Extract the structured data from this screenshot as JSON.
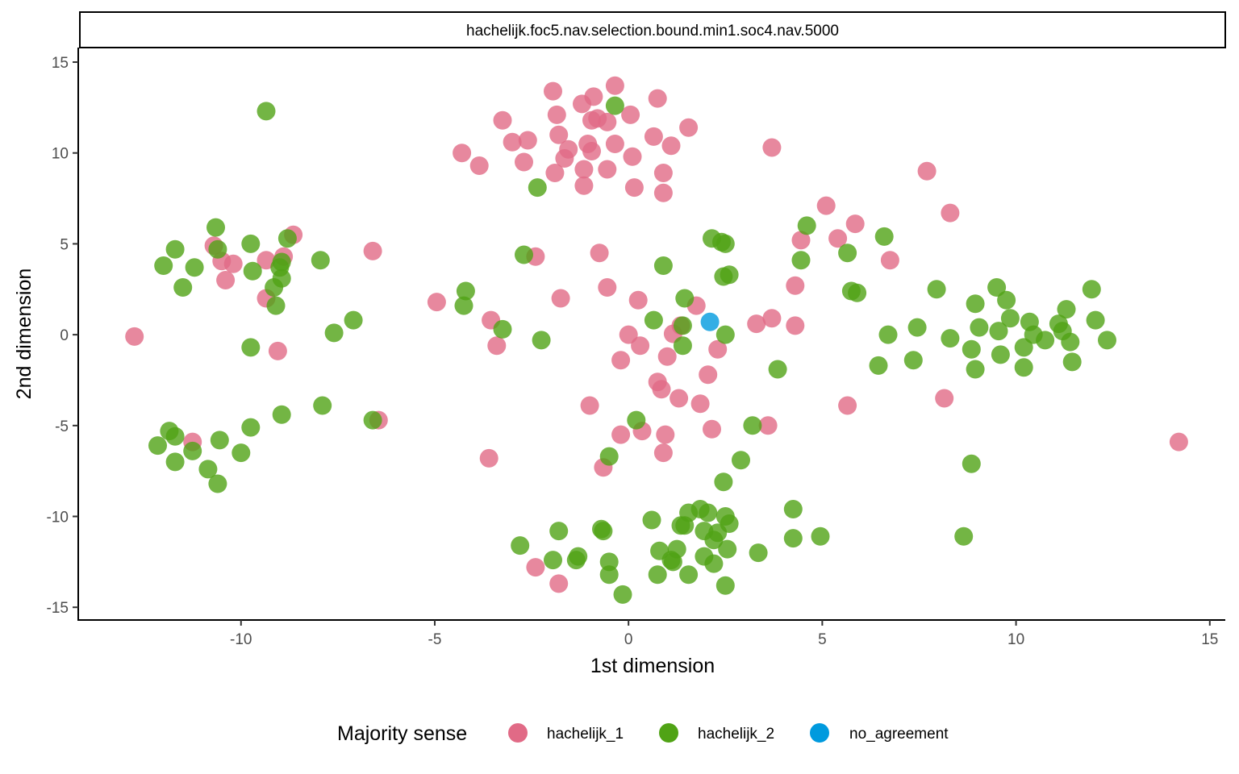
{
  "chart_data": {
    "type": "scatter",
    "facet_title": "hachelijk.foc5.nav.selection.bound.min1.soc4.nav.5000",
    "xlabel": "1st dimension",
    "ylabel": "2nd dimension",
    "xlim": [
      -14.2,
      15.4
    ],
    "ylim": [
      -15.7,
      15.8
    ],
    "x_ticks": [
      -10,
      -5,
      0,
      5,
      10,
      15
    ],
    "y_ticks": [
      -15,
      -10,
      -5,
      0,
      5,
      10,
      15
    ],
    "x_tick_labels": [
      "-10",
      "-5",
      "0",
      "5",
      "10",
      "15"
    ],
    "y_tick_labels": [
      "-15",
      "-10",
      "-5",
      "0",
      "5",
      "10",
      "15"
    ],
    "grid": false,
    "legend": {
      "title": "Majority sense",
      "position": "bottom",
      "items": [
        {
          "label": "hachelijk_1",
          "color": "#E16A86"
        },
        {
          "label": "hachelijk_2",
          "color": "#50A315"
        },
        {
          "label": "no_agreement",
          "color": "#009ADE"
        }
      ]
    },
    "series": [
      {
        "name": "hachelijk_1",
        "color": "#E16A86",
        "points": [
          [
            -1.95,
            13.4
          ],
          [
            -0.9,
            13.1
          ],
          [
            -0.35,
            13.7
          ],
          [
            0.75,
            13.0
          ],
          [
            -3.25,
            11.8
          ],
          [
            -1.85,
            12.1
          ],
          [
            -1.2,
            12.7
          ],
          [
            -0.95,
            11.8
          ],
          [
            -0.8,
            11.9
          ],
          [
            -0.55,
            11.7
          ],
          [
            0.05,
            12.1
          ],
          [
            -3.0,
            10.6
          ],
          [
            -2.6,
            10.7
          ],
          [
            -1.8,
            11.0
          ],
          [
            -1.55,
            10.2
          ],
          [
            -1.05,
            10.5
          ],
          [
            -0.95,
            10.1
          ],
          [
            -0.35,
            10.5
          ],
          [
            0.65,
            10.9
          ],
          [
            1.1,
            10.4
          ],
          [
            1.55,
            11.4
          ],
          [
            -4.3,
            10.0
          ],
          [
            -3.85,
            9.3
          ],
          [
            -2.7,
            9.5
          ],
          [
            -1.65,
            9.7
          ],
          [
            -1.15,
            9.1
          ],
          [
            -0.55,
            9.1
          ],
          [
            0.1,
            9.8
          ],
          [
            0.9,
            8.9
          ],
          [
            -1.9,
            8.9
          ],
          [
            -1.15,
            8.2
          ],
          [
            0.15,
            8.1
          ],
          [
            0.9,
            7.8
          ],
          [
            3.7,
            10.3
          ],
          [
            7.7,
            9.0
          ],
          [
            8.3,
            6.7
          ],
          [
            5.1,
            7.1
          ],
          [
            5.85,
            6.1
          ],
          [
            4.45,
            5.2
          ],
          [
            5.4,
            5.3
          ],
          [
            6.75,
            4.1
          ],
          [
            4.3,
            2.7
          ],
          [
            3.7,
            0.9
          ],
          [
            4.3,
            0.5
          ],
          [
            3.3,
            0.6
          ],
          [
            -0.75,
            4.5
          ],
          [
            -0.55,
            2.6
          ],
          [
            0.25,
            1.9
          ],
          [
            -1.75,
            2.0
          ],
          [
            -2.4,
            4.3
          ],
          [
            -4.95,
            1.8
          ],
          [
            -3.55,
            0.8
          ],
          [
            -3.4,
            -0.6
          ],
          [
            1.75,
            1.6
          ],
          [
            1.35,
            0.5
          ],
          [
            0.0,
            0.0
          ],
          [
            0.3,
            -0.6
          ],
          [
            1.15,
            0.05
          ],
          [
            -0.2,
            -1.4
          ],
          [
            1.0,
            -1.2
          ],
          [
            2.3,
            -0.8
          ],
          [
            2.05,
            -2.2
          ],
          [
            0.75,
            -2.6
          ],
          [
            0.85,
            -3.0
          ],
          [
            1.3,
            -3.5
          ],
          [
            1.85,
            -3.8
          ],
          [
            -1.0,
            -3.9
          ],
          [
            2.15,
            -5.2
          ],
          [
            3.6,
            -5.0
          ],
          [
            5.65,
            -3.9
          ],
          [
            0.35,
            -5.3
          ],
          [
            0.95,
            -5.5
          ],
          [
            -0.2,
            -5.5
          ],
          [
            0.9,
            -6.5
          ],
          [
            -0.65,
            -7.3
          ],
          [
            -3.6,
            -6.8
          ],
          [
            8.15,
            -3.5
          ],
          [
            14.2,
            -5.9
          ],
          [
            -2.4,
            -12.8
          ],
          [
            -1.8,
            -13.7
          ],
          [
            -12.75,
            -0.1
          ],
          [
            -6.6,
            4.6
          ],
          [
            -6.45,
            -4.7
          ],
          [
            -11.25,
            -5.9
          ],
          [
            -10.7,
            4.9
          ],
          [
            -10.5,
            4.05
          ],
          [
            -10.2,
            3.9
          ],
          [
            -10.4,
            3.0
          ],
          [
            -9.35,
            4.1
          ],
          [
            -8.65,
            5.5
          ],
          [
            -8.9,
            4.3
          ],
          [
            -9.35,
            2.0
          ],
          [
            -9.05,
            -0.9
          ]
        ]
      },
      {
        "name": "hachelijk_2",
        "color": "#50A315",
        "points": [
          [
            -9.35,
            12.3
          ],
          [
            -0.35,
            12.6
          ],
          [
            -2.35,
            8.1
          ],
          [
            -10.65,
            5.9
          ],
          [
            -11.7,
            4.7
          ],
          [
            -12.0,
            3.8
          ],
          [
            -11.2,
            3.7
          ],
          [
            -11.5,
            2.6
          ],
          [
            -10.6,
            4.7
          ],
          [
            -9.75,
            5.0
          ],
          [
            -8.8,
            5.3
          ],
          [
            -8.95,
            4.0
          ],
          [
            -9.7,
            3.5
          ],
          [
            -9.0,
            3.7
          ],
          [
            -8.95,
            3.1
          ],
          [
            -9.15,
            2.6
          ],
          [
            -7.95,
            4.1
          ],
          [
            -9.1,
            1.6
          ],
          [
            -7.1,
            0.8
          ],
          [
            -7.6,
            0.1
          ],
          [
            -9.75,
            -0.7
          ],
          [
            -4.2,
            2.4
          ],
          [
            -4.25,
            1.6
          ],
          [
            -3.25,
            0.3
          ],
          [
            -2.25,
            -0.3
          ],
          [
            -2.7,
            4.4
          ],
          [
            -7.9,
            -3.9
          ],
          [
            -8.95,
            -4.4
          ],
          [
            -9.75,
            -5.1
          ],
          [
            -6.6,
            -4.7
          ],
          [
            -12.15,
            -6.1
          ],
          [
            -11.85,
            -5.3
          ],
          [
            -11.7,
            -5.6
          ],
          [
            -11.25,
            -6.4
          ],
          [
            -10.55,
            -5.8
          ],
          [
            -10.0,
            -6.5
          ],
          [
            -11.7,
            -7.0
          ],
          [
            -10.85,
            -7.4
          ],
          [
            -10.6,
            -8.2
          ],
          [
            2.15,
            5.3
          ],
          [
            2.4,
            5.1
          ],
          [
            2.5,
            5.0
          ],
          [
            0.9,
            3.8
          ],
          [
            2.45,
            3.2
          ],
          [
            2.6,
            3.3
          ],
          [
            1.45,
            2.0
          ],
          [
            0.65,
            0.8
          ],
          [
            1.4,
            0.5
          ],
          [
            1.4,
            -0.6
          ],
          [
            2.5,
            0.0
          ],
          [
            3.85,
            -1.9
          ],
          [
            3.2,
            -5.0
          ],
          [
            2.9,
            -6.9
          ],
          [
            2.45,
            -8.1
          ],
          [
            0.2,
            -4.7
          ],
          [
            -0.5,
            -6.7
          ],
          [
            4.6,
            6.0
          ],
          [
            4.45,
            4.1
          ],
          [
            5.65,
            4.5
          ],
          [
            5.75,
            2.4
          ],
          [
            5.9,
            2.3
          ],
          [
            6.6,
            5.4
          ],
          [
            6.7,
            0.0
          ],
          [
            6.45,
            -1.7
          ],
          [
            7.45,
            0.4
          ],
          [
            7.35,
            -1.4
          ],
          [
            7.95,
            2.5
          ],
          [
            8.3,
            -0.2
          ],
          [
            8.85,
            -0.8
          ],
          [
            8.95,
            1.7
          ],
          [
            9.05,
            0.4
          ],
          [
            8.95,
            -1.9
          ],
          [
            9.5,
            2.6
          ],
          [
            9.55,
            0.2
          ],
          [
            9.75,
            1.9
          ],
          [
            9.85,
            0.9
          ],
          [
            9.6,
            -1.1
          ],
          [
            10.2,
            -0.7
          ],
          [
            10.35,
            0.7
          ],
          [
            10.45,
            0.0
          ],
          [
            10.75,
            -0.3
          ],
          [
            10.2,
            -1.8
          ],
          [
            11.1,
            0.6
          ],
          [
            11.3,
            1.4
          ],
          [
            11.2,
            0.2
          ],
          [
            11.4,
            -0.4
          ],
          [
            11.45,
            -1.5
          ],
          [
            11.95,
            2.5
          ],
          [
            12.05,
            0.8
          ],
          [
            12.35,
            -0.3
          ],
          [
            8.85,
            -7.1
          ],
          [
            8.65,
            -11.1
          ],
          [
            4.25,
            -9.6
          ],
          [
            4.25,
            -11.2
          ],
          [
            4.95,
            -11.1
          ],
          [
            3.35,
            -12.0
          ],
          [
            -2.8,
            -11.6
          ],
          [
            -1.8,
            -10.8
          ],
          [
            -1.95,
            -12.4
          ],
          [
            -1.35,
            -12.4
          ],
          [
            -1.3,
            -12.2
          ],
          [
            -0.7,
            -10.7
          ],
          [
            -0.65,
            -10.8
          ],
          [
            -0.5,
            -12.5
          ],
          [
            -0.5,
            -13.2
          ],
          [
            -0.15,
            -14.3
          ],
          [
            0.6,
            -10.2
          ],
          [
            0.8,
            -11.9
          ],
          [
            0.75,
            -13.2
          ],
          [
            1.1,
            -12.4
          ],
          [
            1.15,
            -12.5
          ],
          [
            1.25,
            -11.8
          ],
          [
            1.35,
            -10.5
          ],
          [
            1.45,
            -10.5
          ],
          [
            1.55,
            -9.8
          ],
          [
            1.55,
            -13.2
          ],
          [
            1.85,
            -9.6
          ],
          [
            1.95,
            -10.8
          ],
          [
            1.95,
            -12.2
          ],
          [
            2.05,
            -9.8
          ],
          [
            2.2,
            -11.3
          ],
          [
            2.2,
            -12.6
          ],
          [
            2.3,
            -10.9
          ],
          [
            2.5,
            -10.0
          ],
          [
            2.6,
            -10.4
          ],
          [
            2.55,
            -11.8
          ],
          [
            2.5,
            -13.8
          ]
        ]
      },
      {
        "name": "no_agreement",
        "color": "#009ADE",
        "points": [
          [
            2.1,
            0.7
          ]
        ]
      }
    ]
  }
}
